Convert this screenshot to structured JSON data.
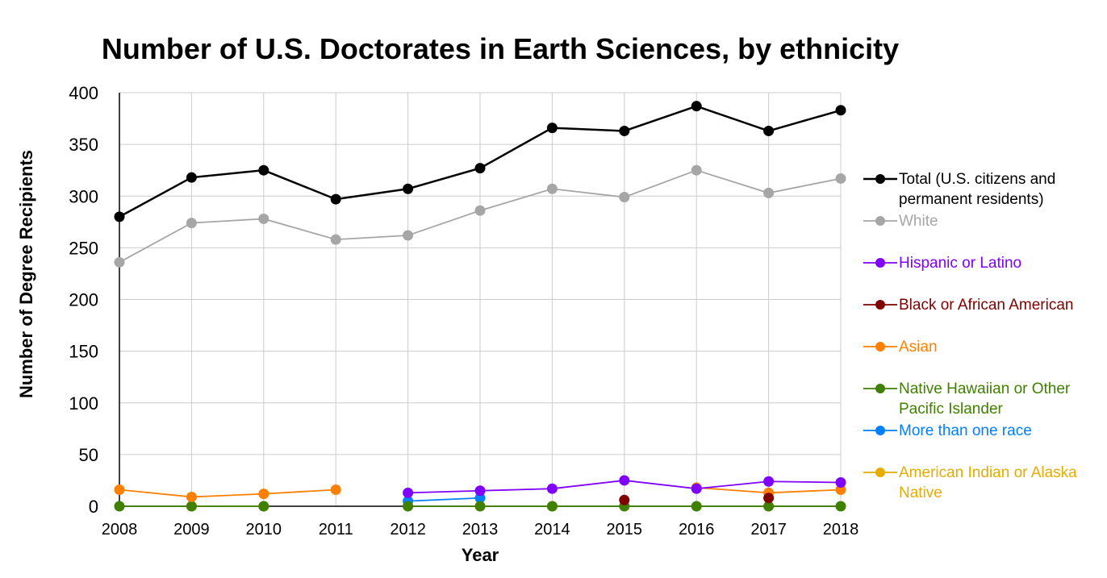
{
  "chart_data": {
    "type": "line",
    "title": "Number of U.S. Doctorates in Earth Sciences, by ethnicity",
    "xlabel": "Year",
    "ylabel": "Number of Degree Recipients",
    "x": [
      2008,
      2009,
      2010,
      2011,
      2012,
      2013,
      2014,
      2015,
      2016,
      2017,
      2018
    ],
    "ylim": [
      0,
      400
    ],
    "yticks": [
      0,
      50,
      100,
      150,
      200,
      250,
      300,
      350,
      400
    ],
    "grid": true,
    "legend_position": "right",
    "series": [
      {
        "name": "Total (U.S. citizens and permanent residents)",
        "color": "#000000",
        "values": [
          280,
          318,
          325,
          297,
          307,
          327,
          366,
          363,
          387,
          363,
          383
        ]
      },
      {
        "name": "White",
        "color": "#a6a6a6",
        "values": [
          236,
          274,
          278,
          258,
          262,
          286,
          307,
          299,
          325,
          303,
          317
        ]
      },
      {
        "name": "Hispanic or Latino",
        "color": "#8000ff",
        "values": [
          null,
          null,
          null,
          null,
          13,
          15,
          17,
          25,
          17,
          24,
          23
        ]
      },
      {
        "name": "Black or African American",
        "color": "#800000",
        "values": [
          null,
          null,
          null,
          null,
          null,
          null,
          null,
          6,
          null,
          8,
          null
        ]
      },
      {
        "name": "Asian",
        "color": "#ff8000",
        "values": [
          16,
          9,
          12,
          16,
          null,
          null,
          null,
          null,
          18,
          13,
          16
        ]
      },
      {
        "name": "Native Hawaiian or Other Pacific Islander",
        "color": "#3f8000",
        "values": [
          0,
          0,
          0,
          null,
          0,
          0,
          0,
          0,
          0,
          0,
          0
        ]
      },
      {
        "name": "More than one race",
        "color": "#0080ff",
        "values": [
          null,
          null,
          null,
          null,
          5,
          8,
          null,
          null,
          null,
          null,
          null
        ]
      },
      {
        "name": "American Indian or Alaska Native",
        "color": "#e6ac00",
        "values": [
          null,
          0,
          0,
          null,
          null,
          null,
          0,
          null,
          null,
          null,
          null
        ]
      }
    ]
  },
  "legend": {
    "items": [
      {
        "lines": [
          "Total (U.S. citizens and",
          "permanent residents)"
        ]
      },
      {
        "lines": [
          "White"
        ]
      },
      {
        "lines": [
          "Hispanic or Latino"
        ]
      },
      {
        "lines": [
          "Black or African American"
        ]
      },
      {
        "lines": [
          "Asian"
        ]
      },
      {
        "lines": [
          "Native Hawaiian or Other",
          "Pacific Islander"
        ]
      },
      {
        "lines": [
          "More than one race"
        ]
      },
      {
        "lines": [
          "American Indian or Alaska",
          "Native"
        ]
      }
    ]
  }
}
